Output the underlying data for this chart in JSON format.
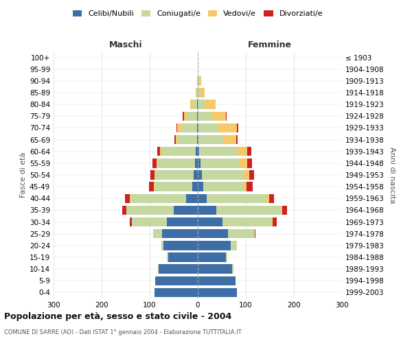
{
  "age_groups_bottom_to_top": [
    "0-4",
    "5-9",
    "10-14",
    "15-19",
    "20-24",
    "25-29",
    "30-34",
    "35-39",
    "40-44",
    "45-49",
    "50-54",
    "55-59",
    "60-64",
    "65-69",
    "70-74",
    "75-79",
    "80-84",
    "85-89",
    "90-94",
    "95-99",
    "100+"
  ],
  "birth_years_bottom_to_top": [
    "1999-2003",
    "1994-1998",
    "1989-1993",
    "1984-1988",
    "1979-1983",
    "1974-1978",
    "1969-1973",
    "1964-1968",
    "1959-1963",
    "1954-1958",
    "1949-1953",
    "1944-1948",
    "1939-1943",
    "1934-1938",
    "1929-1933",
    "1924-1928",
    "1919-1923",
    "1914-1918",
    "1909-1913",
    "1904-1908",
    "≤ 1903"
  ],
  "colors": {
    "celibi": "#3d6ea8",
    "coniugati": "#c5d8a0",
    "vedovi": "#f5c96a",
    "divorziati": "#cc2222"
  },
  "maschi_cel": [
    90,
    88,
    82,
    62,
    72,
    75,
    65,
    50,
    25,
    12,
    8,
    6,
    4,
    2,
    2,
    1,
    1,
    0,
    0,
    0,
    0
  ],
  "maschi_con": [
    0,
    0,
    1,
    2,
    4,
    18,
    72,
    98,
    115,
    78,
    80,
    78,
    72,
    40,
    32,
    22,
    9,
    3,
    1,
    0,
    0
  ],
  "maschi_ved": [
    0,
    0,
    0,
    0,
    0,
    0,
    0,
    1,
    1,
    1,
    2,
    2,
    3,
    4,
    9,
    6,
    6,
    2,
    0,
    0,
    0
  ],
  "maschi_div": [
    0,
    0,
    0,
    0,
    0,
    0,
    5,
    8,
    10,
    10,
    8,
    8,
    5,
    2,
    2,
    2,
    0,
    0,
    0,
    0,
    0
  ],
  "femmine_cel": [
    82,
    78,
    72,
    58,
    68,
    63,
    52,
    38,
    18,
    12,
    8,
    5,
    3,
    1,
    1,
    0,
    0,
    0,
    0,
    0,
    0
  ],
  "femmine_con": [
    0,
    1,
    2,
    4,
    14,
    55,
    102,
    135,
    125,
    82,
    88,
    82,
    78,
    52,
    42,
    30,
    15,
    5,
    3,
    1,
    0
  ],
  "femmine_ved": [
    0,
    0,
    0,
    0,
    0,
    0,
    2,
    3,
    5,
    8,
    11,
    16,
    22,
    27,
    38,
    28,
    22,
    9,
    4,
    1,
    0
  ],
  "femmine_div": [
    0,
    0,
    0,
    0,
    0,
    2,
    8,
    10,
    10,
    12,
    10,
    10,
    8,
    3,
    3,
    2,
    0,
    0,
    0,
    0,
    0
  ],
  "title1": "Popolazione per età, sesso e stato civile - 2004",
  "title2": "COMUNE DI SARRE (AO) - Dati ISTAT 1° gennaio 2004 - Elaborazione TUTTITALIA.IT",
  "xlabel_left": "Maschi",
  "xlabel_right": "Femmine",
  "ylabel_left": "Fasce di età",
  "ylabel_right": "Anni di nascita",
  "legend_labels": [
    "Celibi/Nubili",
    "Coniugati/e",
    "Vedovi/e",
    "Divorziati/e"
  ],
  "legend_colors": [
    "#3d6ea8",
    "#c5d8a0",
    "#f5c96a",
    "#cc2222"
  ]
}
